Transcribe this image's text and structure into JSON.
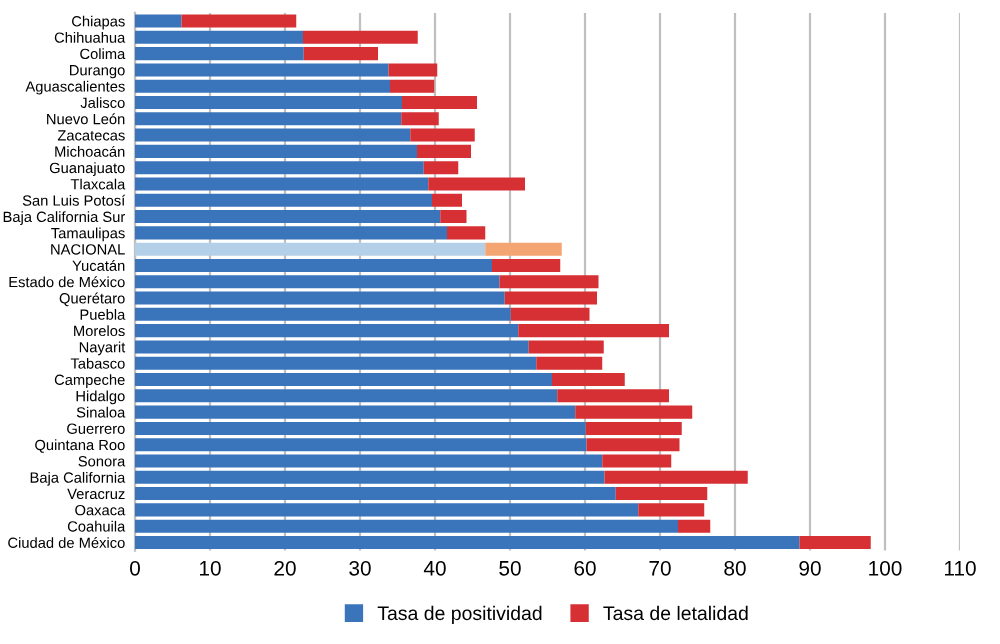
{
  "chart_data": {
    "type": "bar",
    "orientation": "horizontal",
    "stacked": true,
    "categories": [
      "Chiapas",
      "Chihuahua",
      "Colima",
      "Durango",
      "Aguascalientes",
      "Jalisco",
      "Nuevo León",
      "Zacatecas",
      "Michoacán",
      "Guanajuato",
      "Tlaxcala",
      "San Luis Potosí",
      "Baja California Sur",
      "Tamaulipas",
      "NACIONAL",
      "Yucatán",
      "Estado de México",
      "Querétaro",
      "Puebla",
      "Morelos",
      "Nayarit",
      "Tabasco",
      "Campeche",
      "Hidalgo",
      "Sinaloa",
      "Guerrero",
      "Quintana Roo",
      "Sonora",
      "Baja California",
      "Veracruz",
      "Oaxaca",
      "Coahuila",
      "Ciudad de México"
    ],
    "series": [
      {
        "name": "Tasa de positividad",
        "color": "#3a75bb",
        "colors": [
          "#3a75bb",
          "#3a75bb",
          "#3a75bb",
          "#3a75bb",
          "#3a75bb",
          "#3a75bb",
          "#3a75bb",
          "#3a75bb",
          "#3a75bb",
          "#3a75bb",
          "#3a75bb",
          "#3a75bb",
          "#3a75bb",
          "#3a75bb",
          "#b4d0e8",
          "#3a75bb",
          "#3a75bb",
          "#3a75bb",
          "#3a75bb",
          "#3a75bb",
          "#3a75bb",
          "#3a75bb",
          "#3a75bb",
          "#3a75bb",
          "#3a75bb",
          "#3a75bb",
          "#3a75bb",
          "#3a75bb",
          "#3a75bb",
          "#3a75bb",
          "#3a75bb",
          "#3a75bb",
          "#3a75bb"
        ],
        "values": [
          6.2,
          22.4,
          22.5,
          33.8,
          34.0,
          35.6,
          35.5,
          36.7,
          37.6,
          38.5,
          39.1,
          39.6,
          40.7,
          41.6,
          46.7,
          47.6,
          48.6,
          49.3,
          50.1,
          51.1,
          52.5,
          53.5,
          55.6,
          56.3,
          58.7,
          60.1,
          60.2,
          62.3,
          62.6,
          64.1,
          67.1,
          72.4,
          88.6
        ]
      },
      {
        "name": "Tasa de letalidad",
        "color": "#d63035",
        "colors": [
          "#d63035",
          "#d63035",
          "#d63035",
          "#d63035",
          "#d63035",
          "#d63035",
          "#d63035",
          "#d63035",
          "#d63035",
          "#d63035",
          "#d63035",
          "#d63035",
          "#d63035",
          "#d63035",
          "#f4a672",
          "#d63035",
          "#d63035",
          "#d63035",
          "#d63035",
          "#d63035",
          "#d63035",
          "#d63035",
          "#d63035",
          "#d63035",
          "#d63035",
          "#d63035",
          "#d63035",
          "#d63035",
          "#d63035",
          "#d63035",
          "#d63035",
          "#d63035",
          "#d63035"
        ],
        "values": [
          15.3,
          15.3,
          9.9,
          6.5,
          5.9,
          10.0,
          5.0,
          8.6,
          7.2,
          4.6,
          12.9,
          4.0,
          3.5,
          5.1,
          10.2,
          9.1,
          13.2,
          12.3,
          10.5,
          20.1,
          10.0,
          8.8,
          9.7,
          14.9,
          15.6,
          12.8,
          12.4,
          9.2,
          19.1,
          12.2,
          8.8,
          4.3,
          9.5
        ]
      }
    ],
    "xlim": [
      0,
      110
    ],
    "xticks": [
      0,
      10,
      20,
      30,
      40,
      50,
      60,
      70,
      80,
      90,
      100,
      110
    ],
    "grid": "x",
    "legend": "bottom"
  }
}
